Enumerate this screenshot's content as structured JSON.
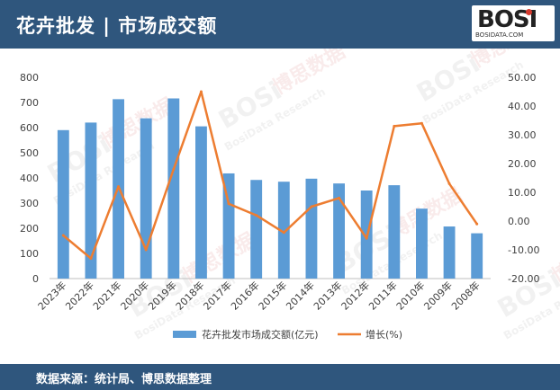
{
  "header": {
    "title": "花卉批发 | 市场成交额"
  },
  "logo": {
    "main": "BOSI",
    "sub": "BOSIDATA.COM"
  },
  "footer": {
    "source": "数据来源：统计局、博思数据整理"
  },
  "watermark": {
    "brand": "BOSi",
    "cn": "博思数据",
    "en": "BosiData Research"
  },
  "colors": {
    "bar": "#5b9bd5",
    "line": "#ed7d31",
    "header": "#2f567d"
  },
  "chart_data": {
    "type": "bar",
    "categories": [
      "2023年",
      "2022年",
      "2021年",
      "2020年",
      "2019年",
      "2018年",
      "2017年",
      "2016年",
      "2015年",
      "2014年",
      "2013年",
      "2012年",
      "2011年",
      "2010年",
      "2009年",
      "2008年"
    ],
    "series": [
      {
        "name": "花卉批发市场成交额(亿元)",
        "type": "bar",
        "axis": "left",
        "values": [
          590,
          620,
          713,
          637,
          716,
          605,
          418,
          392,
          385,
          397,
          378,
          350,
          371,
          278,
          207,
          180
        ]
      },
      {
        "name": "增长(%)",
        "type": "line",
        "axis": "right",
        "values": [
          -5,
          -13,
          12,
          -10,
          18,
          45,
          6,
          2,
          -4,
          5,
          8,
          -6,
          33,
          34,
          13,
          -1
        ]
      }
    ],
    "yleft": {
      "min": 0,
      "max": 800,
      "ticks": [
        "0",
        "100",
        "200",
        "300",
        "400",
        "500",
        "600",
        "700",
        "800"
      ]
    },
    "yright": {
      "min": -20,
      "max": 50,
      "ticks": [
        "-20.00",
        "-10.00",
        "0.00",
        "10.00",
        "20.00",
        "30.00",
        "40.00",
        "50.00"
      ]
    },
    "legend": "bottom",
    "grid": false
  }
}
